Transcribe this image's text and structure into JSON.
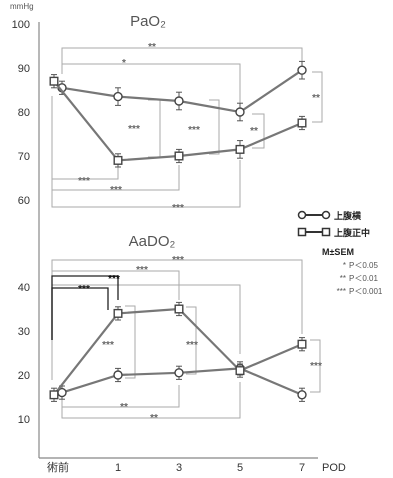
{
  "chart_data": [
    {
      "type": "line",
      "title": "PaO₂",
      "unit_label": "mmHg",
      "x_categories": [
        "術前",
        "1",
        "3",
        "5",
        "7"
      ],
      "x_values": [
        0,
        1,
        3,
        5,
        7
      ],
      "xlabel": "POD",
      "ylim": [
        60,
        100
      ],
      "yticks": [
        "60",
        "70",
        "80",
        "90",
        "100"
      ],
      "series": [
        {
          "name": "上腹横",
          "marker": "circle",
          "values": [
            85.5,
            83.5,
            82.5,
            80,
            89.5
          ],
          "sem": [
            1.5,
            2,
            2,
            2,
            2
          ]
        },
        {
          "name": "上腹正中",
          "marker": "square",
          "values": [
            87,
            69,
            70,
            71.5,
            77.5
          ],
          "sem": [
            1.5,
            1.5,
            1.5,
            2,
            1.5
          ]
        }
      ],
      "significance": [
        "**",
        "*",
        "***",
        "***",
        "**",
        "**",
        "***",
        "***",
        "***"
      ]
    },
    {
      "type": "line",
      "title": "AaDO₂",
      "ylim": [
        10,
        50
      ],
      "yticks": [
        "10",
        "20",
        "30",
        "40"
      ],
      "series": [
        {
          "name": "上腹横",
          "marker": "circle",
          "values": [
            16,
            20,
            20.5,
            21.5,
            15.5
          ],
          "sem": [
            1.5,
            1.5,
            1.5,
            1.5,
            1.5
          ]
        },
        {
          "name": "上腹正中",
          "marker": "square",
          "values": [
            15.5,
            34,
            35,
            21,
            27
          ],
          "sem": [
            1.5,
            1.5,
            1.5,
            1.5,
            1.5
          ]
        }
      ],
      "significance": [
        "***",
        "***",
        "***",
        "***",
        "***",
        "***",
        "***",
        "**",
        "**"
      ]
    }
  ],
  "legend": {
    "items": [
      {
        "label": "上腹横",
        "marker": "circle"
      },
      {
        "label": "上腹正中",
        "marker": "square"
      }
    ],
    "stat_label": "M±SEM",
    "pvalues": [
      {
        "stars": "*",
        "text": "P＜0.05"
      },
      {
        "stars": "**",
        "text": "P＜0.01"
      },
      {
        "stars": "***",
        "text": "P＜0.001"
      }
    ]
  },
  "colors": {
    "line": "#777777",
    "axis": "#888888",
    "bracket": "#aaaaaa",
    "text": "#333333"
  }
}
